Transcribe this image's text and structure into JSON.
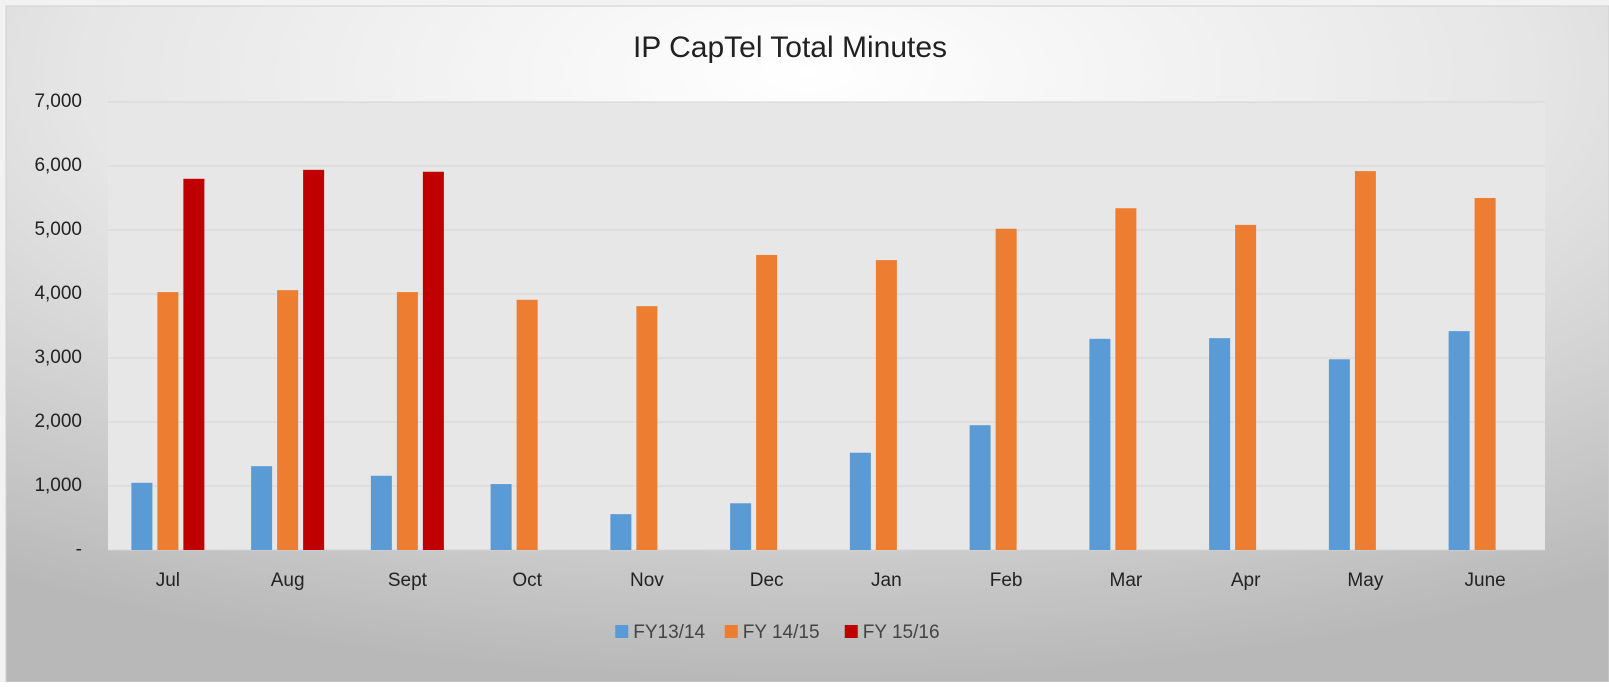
{
  "chart_data": {
    "type": "bar",
    "title": "IP CapTel Total Minutes",
    "categories": [
      "Jul",
      "Aug",
      "Sept",
      "Oct",
      "Nov",
      "Dec",
      "Jan",
      "Feb",
      "Mar",
      "Apr",
      "May",
      "June"
    ],
    "series": [
      {
        "name": "FY13/14",
        "color": "#5b9bd5",
        "values": [
          1050,
          1310,
          1160,
          1030,
          560,
          730,
          1520,
          1950,
          3300,
          3310,
          2980,
          3420
        ]
      },
      {
        "name": "FY 14/15",
        "color": "#ed7d31",
        "values": [
          4030,
          4060,
          4030,
          3910,
          3810,
          4610,
          4530,
          5020,
          5340,
          5080,
          5920,
          5500
        ]
      },
      {
        "name": "FY 15/16",
        "color": "#c00000",
        "values": [
          5800,
          5940,
          5910,
          null,
          null,
          null,
          null,
          null,
          null,
          null,
          null,
          null
        ]
      }
    ],
    "ylim": [
      0,
      7000
    ],
    "yticks": [
      {
        "value": 0,
        "label": "-"
      },
      {
        "value": 1000,
        "label": "1,000"
      },
      {
        "value": 2000,
        "label": "2,000"
      },
      {
        "value": 3000,
        "label": "3,000"
      },
      {
        "value": 4000,
        "label": "4,000"
      },
      {
        "value": 5000,
        "label": "5,000"
      },
      {
        "value": 6000,
        "label": "6,000"
      },
      {
        "value": 7000,
        "label": "7,000"
      }
    ],
    "grid": true,
    "legend": "bottom"
  }
}
